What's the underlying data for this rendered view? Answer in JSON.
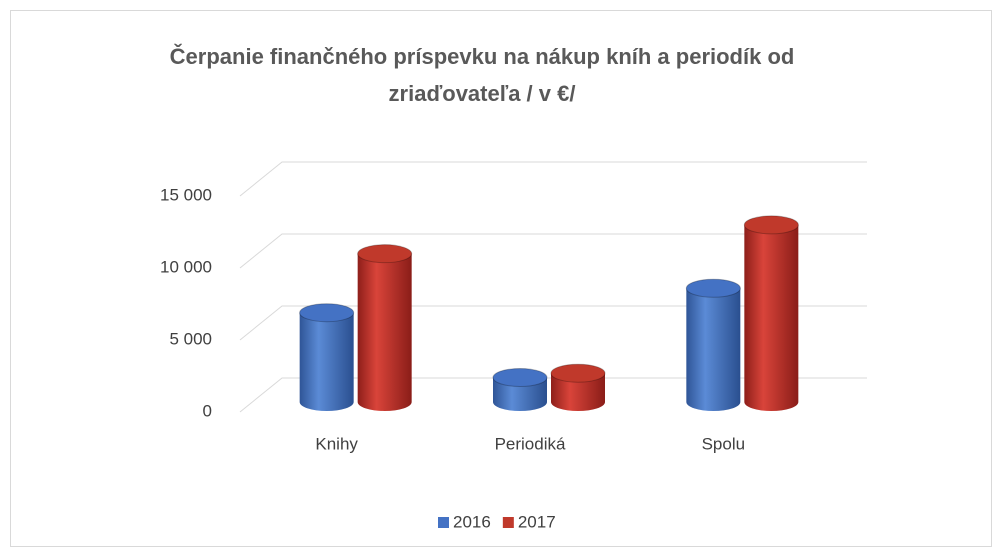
{
  "chart_data": {
    "type": "bar3d",
    "title": [
      "Čerpanie finančného príspevku na nákup kníh a periodík od",
      "zriaďovateľa   / v €/"
    ],
    "categories": [
      "Knihy",
      "Periodiká",
      "Spolu"
    ],
    "series": [
      {
        "name": "2016",
        "color": "#4472c4",
        "values": [
          6200,
          1700,
          7900
        ]
      },
      {
        "name": "2017",
        "color": "#c0392b",
        "values": [
          10300,
          2000,
          12300
        ]
      }
    ],
    "ylim": [
      0,
      15000
    ],
    "yticks": [
      0,
      {
        "value": 5000,
        "label": "5 000"
      },
      {
        "value": 10000,
        "label": "10 000"
      },
      {
        "value": 15000,
        "label": "15 000"
      }
    ],
    "grid": true,
    "legend": "bottom"
  }
}
